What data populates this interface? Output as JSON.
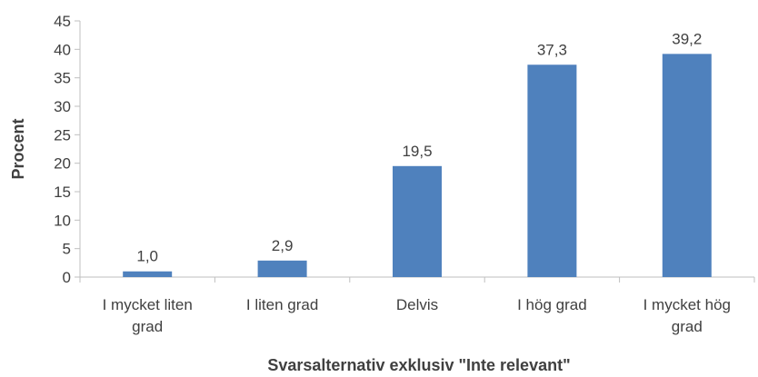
{
  "chart_data": {
    "type": "bar",
    "categories": [
      [
        "I mycket liten",
        "grad"
      ],
      [
        "I liten grad"
      ],
      [
        "Delvis"
      ],
      [
        "I hög grad"
      ],
      [
        "I mycket hög",
        "grad"
      ]
    ],
    "values": [
      1.0,
      2.9,
      19.5,
      37.3,
      39.2
    ],
    "data_labels": [
      "1,0",
      "2,9",
      "19,5",
      "37,3",
      "39,2"
    ],
    "xlabel": "Svarsalternativ exklusiv \"Inte relevant\"",
    "ylabel": "Procent",
    "ylim": [
      0,
      45
    ],
    "yticks": [
      0,
      5,
      10,
      15,
      20,
      25,
      30,
      35,
      40,
      45
    ],
    "grid": false,
    "legend": "none",
    "colors": {
      "bar": "#4f81bd",
      "axis": "#bfbfbf",
      "text": "#404040"
    }
  }
}
